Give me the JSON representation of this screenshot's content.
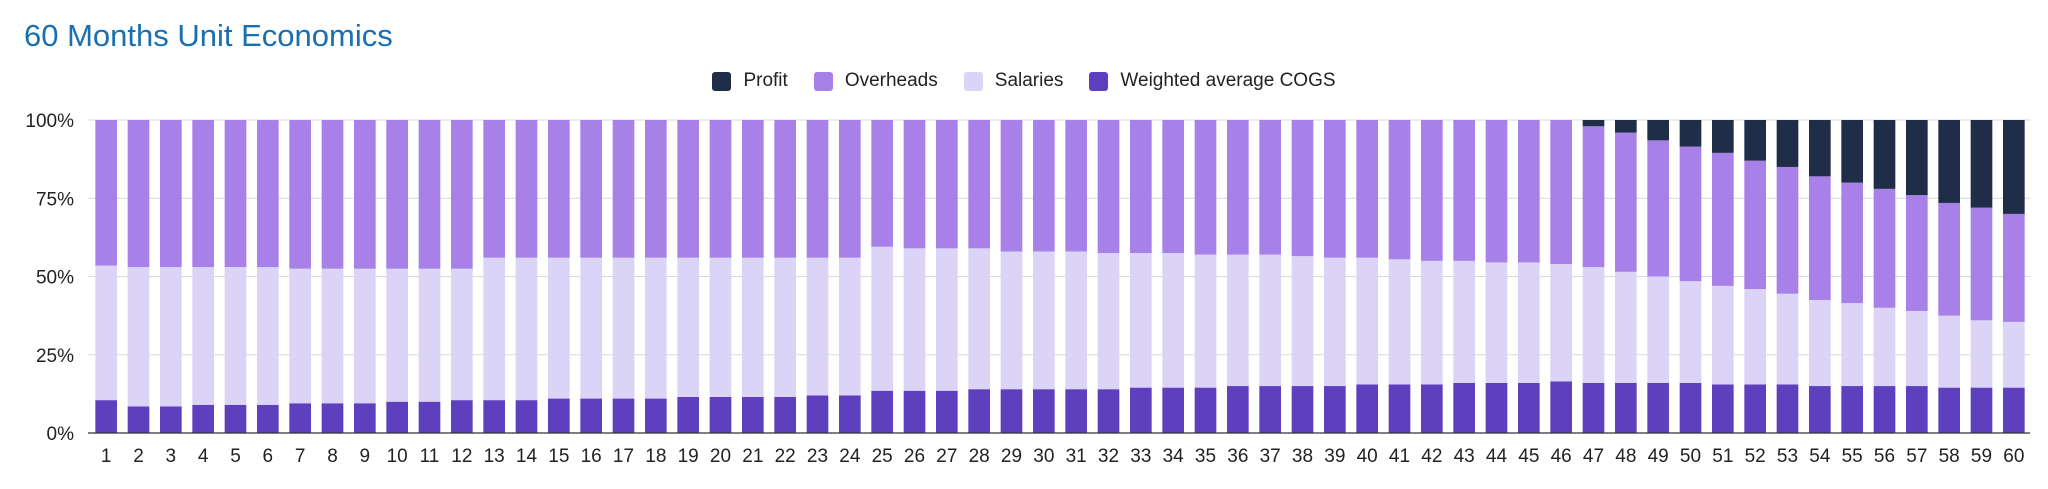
{
  "chart_data": {
    "type": "bar",
    "stacked": "percent",
    "title": "60 Months Unit Economics",
    "xlabel": "",
    "ylabel": "",
    "ylim": [
      0,
      100
    ],
    "yticks": [
      "0%",
      "25%",
      "50%",
      "75%",
      "100%"
    ],
    "legend_position": "top-center",
    "categories": [
      "1",
      "2",
      "3",
      "4",
      "5",
      "6",
      "7",
      "8",
      "9",
      "10",
      "11",
      "12",
      "13",
      "14",
      "15",
      "16",
      "17",
      "18",
      "19",
      "20",
      "21",
      "22",
      "23",
      "24",
      "25",
      "26",
      "27",
      "28",
      "29",
      "30",
      "31",
      "32",
      "33",
      "34",
      "35",
      "36",
      "37",
      "38",
      "39",
      "40",
      "41",
      "42",
      "43",
      "44",
      "45",
      "46",
      "47",
      "48",
      "49",
      "50",
      "51",
      "52",
      "53",
      "54",
      "55",
      "56",
      "57",
      "58",
      "59",
      "60"
    ],
    "series": [
      {
        "name": "Weighted average COGS",
        "color": "#5e3fbe",
        "values": [
          10.5,
          8.5,
          8.5,
          9,
          9,
          9,
          9.5,
          9.5,
          9.5,
          10,
          10,
          10.5,
          10.5,
          10.5,
          11,
          11,
          11,
          11,
          11.5,
          11.5,
          11.5,
          11.5,
          12,
          12,
          13.5,
          13.5,
          13.5,
          14,
          14,
          14,
          14,
          14,
          14.5,
          14.5,
          14.5,
          15,
          15,
          15,
          15,
          15.5,
          15.5,
          15.5,
          16,
          16,
          16,
          16.5,
          16,
          16,
          16,
          16,
          15.5,
          15.5,
          15.5,
          15,
          15,
          15,
          15,
          14.5,
          14.5,
          14.5
        ]
      },
      {
        "name": "Salaries",
        "color": "#dcd4f7",
        "values": [
          43,
          44.5,
          44.5,
          44,
          44,
          44,
          43,
          43,
          43,
          42.5,
          42.5,
          42,
          45.5,
          45.5,
          45,
          45,
          45,
          45,
          44.5,
          44.5,
          44.5,
          44.5,
          44,
          44,
          46,
          45.5,
          45.5,
          45,
          44,
          44,
          44,
          43.5,
          43,
          43,
          42.5,
          42,
          42,
          41.5,
          41,
          40.5,
          40,
          39.5,
          39,
          38.5,
          38.5,
          37.5,
          37,
          35.5,
          34,
          32.5,
          31.5,
          30.5,
          29,
          27.5,
          26.5,
          25,
          24,
          23,
          21.5,
          21
        ]
      },
      {
        "name": "Overheads",
        "color": "#a780e8",
        "values": [
          46.5,
          47,
          47,
          47,
          47,
          47,
          47.5,
          47.5,
          47.5,
          47.5,
          47.5,
          47.5,
          44,
          44,
          44,
          44,
          44,
          44,
          44,
          44,
          44,
          44,
          44,
          44,
          40.5,
          41,
          41,
          41,
          42,
          42,
          42,
          42.5,
          42.5,
          42.5,
          43,
          43,
          43,
          43.5,
          44,
          44,
          44.5,
          45,
          45,
          45.5,
          45.5,
          46,
          45,
          44.5,
          43.5,
          43,
          42.5,
          41,
          40.5,
          39.5,
          38.5,
          38,
          37,
          36,
          36,
          34.5
        ]
      },
      {
        "name": "Profit",
        "color": "#1f2d48",
        "values": [
          0,
          0,
          0,
          0,
          0,
          0,
          0,
          0,
          0,
          0,
          0,
          0,
          0,
          0,
          0,
          0,
          0,
          0,
          0,
          0,
          0,
          0,
          0,
          0,
          0,
          0,
          0,
          0,
          0,
          0,
          0,
          0,
          0,
          0,
          0,
          0,
          0,
          0,
          0,
          0,
          0,
          0,
          0,
          0,
          0,
          0,
          2,
          4,
          6.5,
          8.5,
          10.5,
          13,
          15,
          18,
          20,
          22,
          24,
          26.5,
          28,
          30
        ]
      }
    ]
  },
  "legend_order": [
    "Profit",
    "Overheads",
    "Salaries",
    "Weighted average COGS"
  ]
}
